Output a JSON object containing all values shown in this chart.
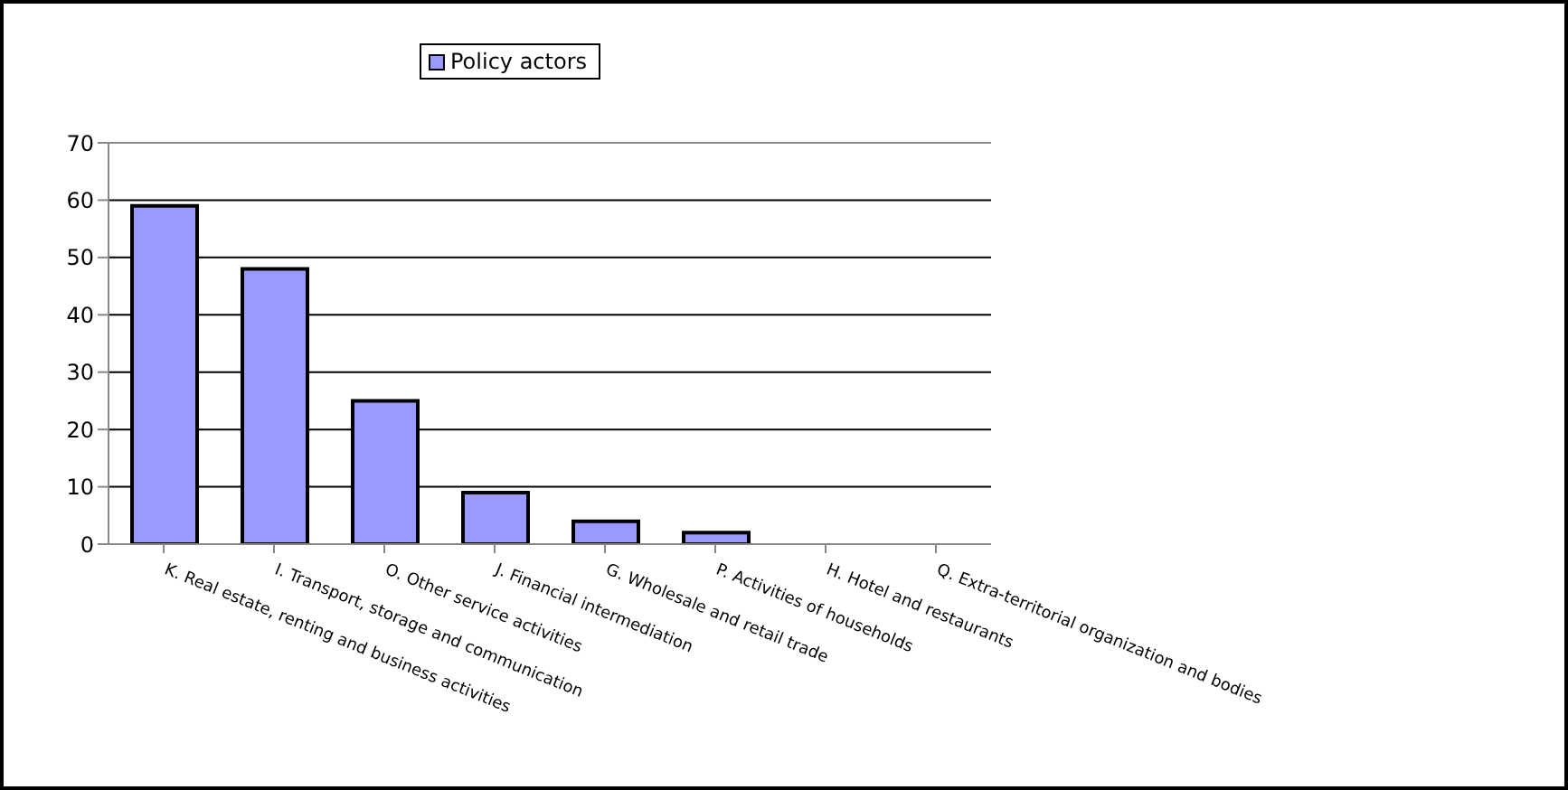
{
  "chart_data": {
    "type": "bar",
    "categories": [
      "K. Real estate, renting and business activities",
      "I. Transport, storage and communication",
      "O. Other service activities",
      "J. Financial intermediation",
      "G. Wholesale and retail trade",
      "P. Activities of households",
      "H. Hotel and restaurants",
      "Q. Extra-territorial organization and bodies"
    ],
    "series": [
      {
        "name": "Policy actors",
        "color": "#9999ff",
        "values": [
          59,
          48,
          25,
          9,
          4,
          2,
          0,
          0
        ]
      }
    ],
    "ylim": [
      0,
      70
    ],
    "yticks": [
      0,
      10,
      20,
      30,
      40,
      50,
      60,
      70
    ],
    "grid": "y",
    "legend": "top"
  }
}
